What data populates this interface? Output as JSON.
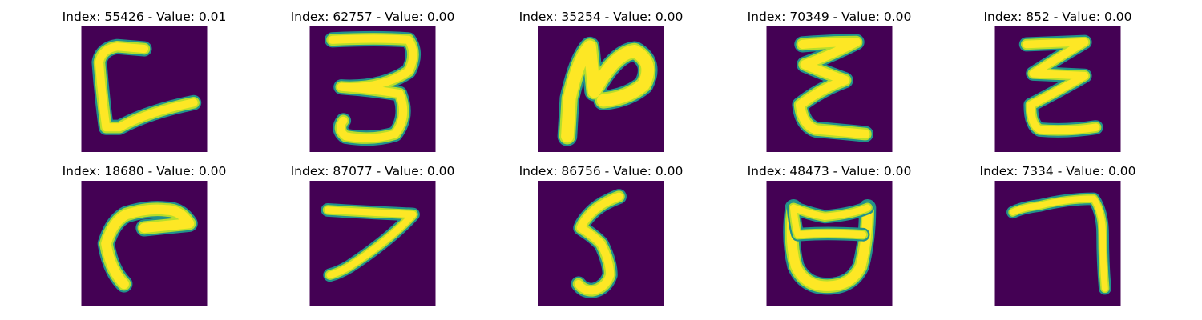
{
  "colors": {
    "background": "#440154",
    "stroke_core": "#fde725",
    "stroke_mid": "#b5de2b",
    "stroke_edge": "#21918c"
  },
  "panels": [
    {
      "title": "Index: 55426 - Value: 0.01",
      "glyph": "C-like shape"
    },
    {
      "title": "Index: 62757 - Value: 0.00",
      "glyph": "3-like shape"
    },
    {
      "title": "Index: 35254 - Value: 0.00",
      "glyph": "N-like shape"
    },
    {
      "title": "Index: 70349 - Value: 0.00",
      "glyph": "E-like zigzag"
    },
    {
      "title": "Index: 852 - Value: 0.00",
      "glyph": "Z-like zigzag"
    },
    {
      "title": "Index: 18680 - Value: 0.00",
      "glyph": "r-like hook"
    },
    {
      "title": "Index: 87077 - Value: 0.00",
      "glyph": "7-like shape"
    },
    {
      "title": "Index: 86756 - Value: 0.00",
      "glyph": "5-like shape"
    },
    {
      "title": "Index: 48473 - Value: 0.00",
      "glyph": "U-like bowl"
    },
    {
      "title": "Index: 7334 - Value: 0.00",
      "glyph": "7-like corner"
    }
  ]
}
